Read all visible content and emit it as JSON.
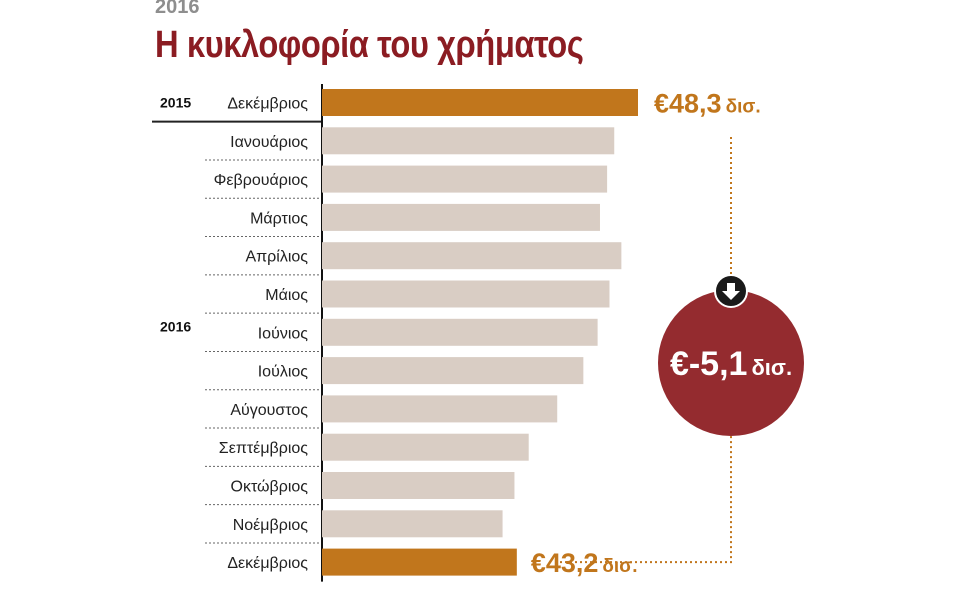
{
  "kicker": "2016",
  "title": "Η κυκλοφορία του χρήματος",
  "colors": {
    "highlight_bar": "#c1761c",
    "bar": "#d9cdc4",
    "title": "#8b1c22",
    "circle": "#942b2f",
    "kicker": "#8e8e8e"
  },
  "chart_data": {
    "type": "bar",
    "orientation": "horizontal",
    "title": "Η κυκλοφορία του χρήματος",
    "unit": "δισ. €",
    "groups": [
      {
        "label": "2015",
        "categories": [
          "Δεκέμβριος"
        ]
      },
      {
        "label": "2016",
        "categories": [
          "Ιανουάριος",
          "Φεβρουάριος",
          "Μάρτιος",
          "Απρίλιος",
          "Μάιος",
          "Ιούνιος",
          "Ιούλιος",
          "Αύγουστος",
          "Σεπτέμβριος",
          "Οκτώβριος",
          "Νοέμβριος",
          "Δεκέμβριος"
        ]
      }
    ],
    "categories": [
      "Δεκέμβριος",
      "Ιανουάριος",
      "Φεβρουάριος",
      "Μάρτιος",
      "Απρίλιος",
      "Μάιος",
      "Ιούνιος",
      "Ιούλιος",
      "Αύγουστος",
      "Σεπτέμβριος",
      "Οκτώβριος",
      "Νοέμβριος",
      "Δεκέμβριος"
    ],
    "values": [
      48.3,
      47.3,
      47.0,
      46.7,
      47.6,
      47.1,
      46.6,
      46.0,
      44.9,
      43.7,
      43.1,
      42.6,
      43.2
    ],
    "highlighted": [
      true,
      false,
      false,
      false,
      false,
      false,
      false,
      false,
      false,
      false,
      false,
      false,
      true
    ],
    "xlim": [
      35,
      48.3
    ],
    "labels": {
      "first": {
        "amount": "€48,3",
        "unit": "δισ."
      },
      "last": {
        "amount": "€43,2",
        "unit": "δισ."
      },
      "difference": {
        "amount": "€-5,1",
        "unit": "δισ."
      }
    },
    "grid": false
  }
}
